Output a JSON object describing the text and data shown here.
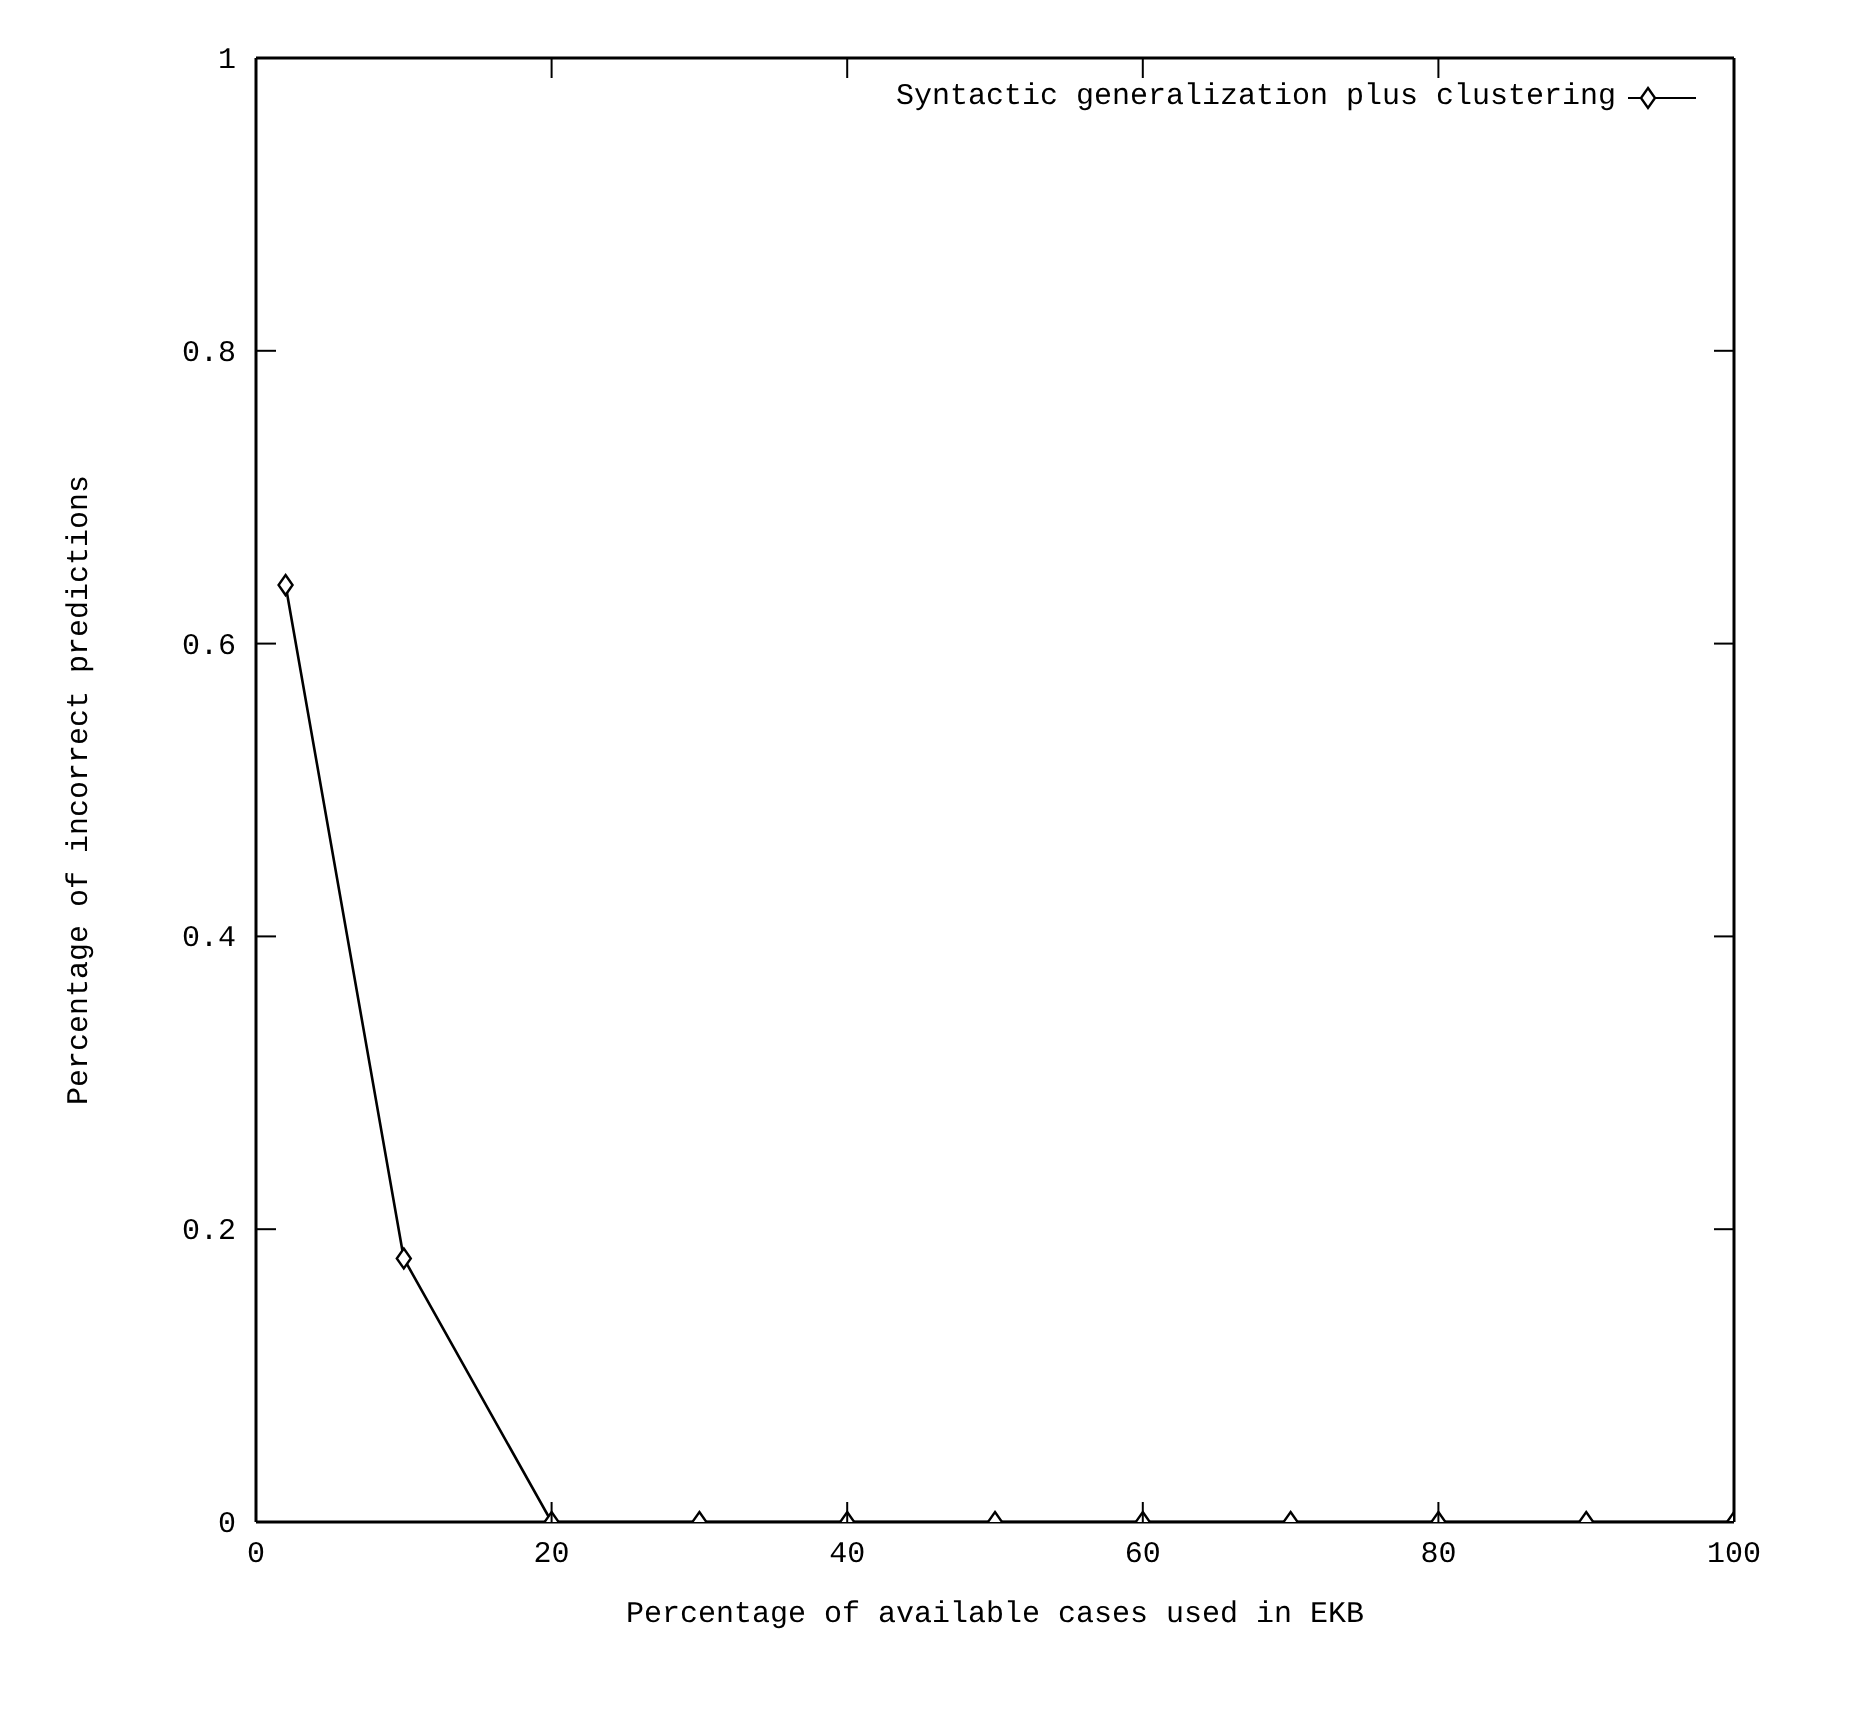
{
  "chart_data": {
    "type": "line",
    "xlabel": "Percentage of available cases used in EKB",
    "ylabel": "Percentage of incorrect predictions",
    "x": [
      2,
      10,
      20,
      30,
      40,
      50,
      60,
      70,
      80,
      90,
      100
    ],
    "series": [
      {
        "name": "Syntactic generalization plus clustering",
        "color": "#000000",
        "values": [
          0.64,
          0.18,
          0,
          0,
          0,
          0,
          0,
          0,
          0,
          0,
          0
        ]
      }
    ],
    "xlim": [
      0,
      100
    ],
    "xticks": [
      0,
      20,
      40,
      60,
      80,
      100
    ],
    "ylim": [
      0,
      1
    ],
    "yticks": [
      0,
      0.2,
      0.4,
      0.6,
      0.8,
      1
    ],
    "grid": false,
    "legend": "top right",
    "marker": "diamond",
    "line_style": "solid"
  }
}
